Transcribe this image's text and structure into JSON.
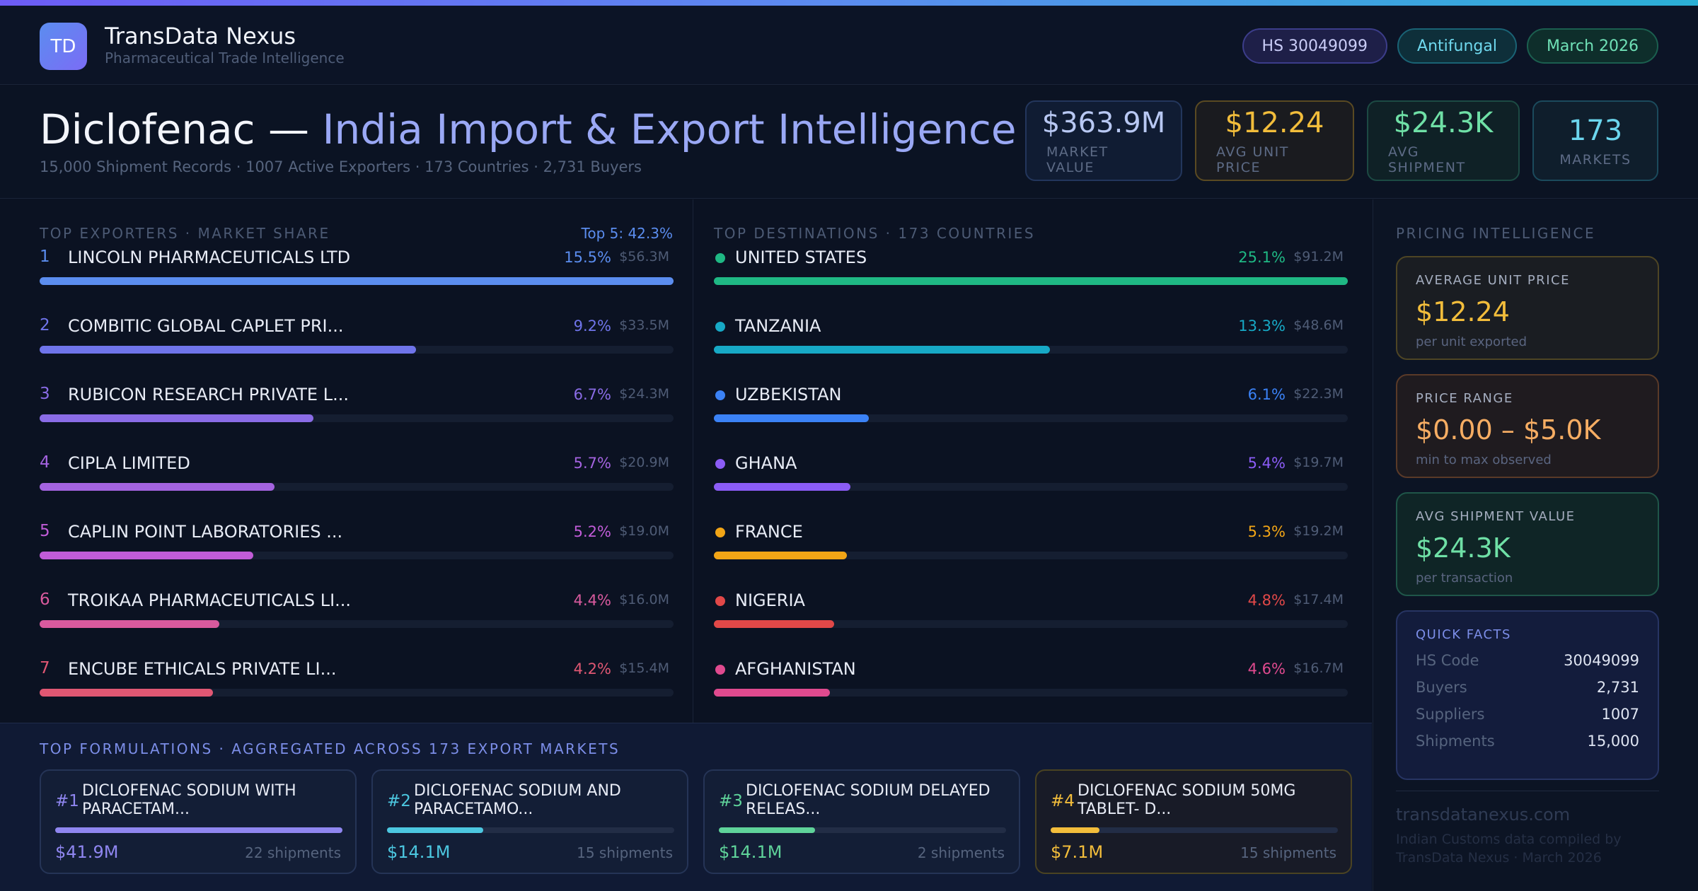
{
  "brand": {
    "logo": "TD",
    "name": "TransData Nexus",
    "subtitle": "Pharmaceutical Trade Intelligence"
  },
  "tags": [
    "HS 30049099",
    "Antifungal",
    "March 2026"
  ],
  "hero": {
    "title_a": "Diclofenac — ",
    "title_b": "India Import & Export Intelligence",
    "subtitle": "15,000 Shipment Records · 1007 Active Exporters · 173 Countries · 2,731 Buyers"
  },
  "kpis": [
    {
      "value": "$363.9M",
      "label": "MARKET VALUE"
    },
    {
      "value": "$12.24",
      "label": "AVG UNIT PRICE"
    },
    {
      "value": "$24.3K",
      "label": "AVG SHIPMENT"
    },
    {
      "value": "173",
      "label": "MARKETS"
    }
  ],
  "exporters": {
    "label": "TOP EXPORTERS · MARKET SHARE",
    "top5": "Top 5: 42.3%",
    "items": [
      {
        "rank": "1",
        "name": "LINCOLN PHARMACEUTICALS LTD",
        "pct": "15.5%",
        "value": "$56.3M",
        "share": 1.0,
        "color": "#5b8def"
      },
      {
        "rank": "2",
        "name": "COMBITIC GLOBAL CAPLET PRI...",
        "pct": "9.2%",
        "value": "$33.5M",
        "share": 0.594,
        "color": "#6f74ea"
      },
      {
        "rank": "3",
        "name": "RUBICON RESEARCH PRIVATE L...",
        "pct": "6.7%",
        "value": "$24.3M",
        "share": 0.432,
        "color": "#8a6ce6"
      },
      {
        "rank": "4",
        "name": "CIPLA LIMITED",
        "pct": "5.7%",
        "value": "$20.9M",
        "share": 0.371,
        "color": "#a463e0"
      },
      {
        "rank": "5",
        "name": "CAPLIN POINT LABORATORIES ...",
        "pct": "5.2%",
        "value": "$19.0M",
        "share": 0.337,
        "color": "#c15cd8"
      },
      {
        "rank": "6",
        "name": "TROIKAA PHARMACEUTICALS LI...",
        "pct": "4.4%",
        "value": "$16.0M",
        "share": 0.284,
        "color": "#d95a9e"
      },
      {
        "rank": "7",
        "name": "ENCUBE ETHICALS PRIVATE LI...",
        "pct": "4.2%",
        "value": "$15.4M",
        "share": 0.273,
        "color": "#e05773"
      }
    ]
  },
  "destinations": {
    "label": "TOP DESTINATIONS · 173 COUNTRIES",
    "items": [
      {
        "name": "UNITED STATES",
        "pct": "25.1%",
        "value": "$91.2M",
        "share": 1.0,
        "color": "#1fb884"
      },
      {
        "name": "TANZANIA",
        "pct": "13.3%",
        "value": "$48.6M",
        "share": 0.53,
        "color": "#17a9c6"
      },
      {
        "name": "UZBEKISTAN",
        "pct": "6.1%",
        "value": "$22.3M",
        "share": 0.244,
        "color": "#3b82f6"
      },
      {
        "name": "GHANA",
        "pct": "5.4%",
        "value": "$19.7M",
        "share": 0.215,
        "color": "#8b5cf6"
      },
      {
        "name": "FRANCE",
        "pct": "5.3%",
        "value": "$19.2M",
        "share": 0.21,
        "color": "#f2a516"
      },
      {
        "name": "NIGERIA",
        "pct": "4.8%",
        "value": "$17.4M",
        "share": 0.19,
        "color": "#e14848"
      },
      {
        "name": "AFGHANISTAN",
        "pct": "4.6%",
        "value": "$16.7M",
        "share": 0.183,
        "color": "#e04a8f"
      }
    ]
  },
  "formulations": {
    "label": "TOP FORMULATIONS · AGGREGATED ACROSS 173 EXPORT MARKETS",
    "items": [
      {
        "rank": "#1",
        "name": "DICLOFENAC SODIUM WITH PARACETAM...",
        "value": "$41.9M",
        "shipments": "22 shipments",
        "share": 1.0,
        "color": "#8f86f0"
      },
      {
        "rank": "#2",
        "name": "DICLOFENAC SODIUM AND PARACETAMO...",
        "value": "$14.1M",
        "shipments": "15 shipments",
        "share": 0.336,
        "color": "#4cc7e0"
      },
      {
        "rank": "#3",
        "name": "DICLOFENAC SODIUM DELAYED RELEAS...",
        "value": "$14.1M",
        "shipments": "2 shipments",
        "share": 0.336,
        "color": "#5fd39a"
      },
      {
        "rank": "#4",
        "name": "DICLOFENAC SODIUM 50MG TABLET- D...",
        "value": "$7.1M",
        "shipments": "15 shipments",
        "share": 0.169,
        "color": "#f2bd3b"
      }
    ]
  },
  "pricing": {
    "label": "PRICING INTELLIGENCE",
    "avg_unit": {
      "label": "AVERAGE UNIT PRICE",
      "value": "$12.24",
      "sub": "per unit exported"
    },
    "range": {
      "label": "PRICE RANGE",
      "value": "$0.00 – $5.0K",
      "sub": "min to max observed"
    },
    "avg_ship": {
      "label": "AVG SHIPMENT VALUE",
      "value": "$24.3K",
      "sub": "per transaction"
    }
  },
  "quick_facts": {
    "label": "QUICK FACTS",
    "rows": [
      {
        "k": "HS Code",
        "v": "30049099"
      },
      {
        "k": "Buyers",
        "v": "2,731"
      },
      {
        "k": "Suppliers",
        "v": "1007"
      },
      {
        "k": "Shipments",
        "v": "15,000"
      }
    ]
  },
  "footer": {
    "site": "transdatanexus.com",
    "credit": "Indian Customs data compiled by TransData Nexus · March 2026"
  }
}
